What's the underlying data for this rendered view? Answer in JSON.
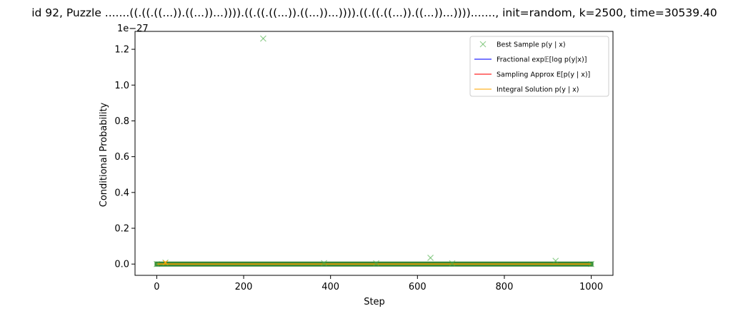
{
  "chart_data": {
    "type": "scatter",
    "title": "id 92, Puzzle .......((.((.((...)).((...))...)))).((.((.((...)).((...))...)))).((.((.((...)).((...))...))))......., init=random, k=2500, time=30539.40",
    "xlabel": "Step",
    "ylabel": "Conditional Probability",
    "y_offset_text": "1e−27",
    "y_scale_exponent": -27,
    "xlim": [
      -50,
      1050
    ],
    "ylim": [
      -0.063,
      1.3
    ],
    "grid": false,
    "legend_position": "top-right",
    "x_ticks": [
      0,
      200,
      400,
      600,
      800,
      1000
    ],
    "x_tick_labels": [
      "0",
      "200",
      "400",
      "600",
      "800",
      "1000"
    ],
    "y_ticks": [
      0.0,
      0.2,
      0.4,
      0.6,
      0.8,
      1.0,
      1.2
    ],
    "y_tick_labels": [
      "0.0",
      "0.2",
      "0.4",
      "0.6",
      "0.8",
      "1.0",
      "1.2"
    ],
    "series": [
      {
        "name": "Best Sample $p(y \\mid x)$",
        "legend_label": "Best Sample p(y | x)",
        "kind": "scatter-x",
        "color": "#4daf4a",
        "points": [
          {
            "x": 245,
            "y": 1.26
          },
          {
            "x": 630,
            "y": 0.035
          },
          {
            "x": 918,
            "y": 0.018
          },
          {
            "x": 20,
            "y": 0.008
          },
          {
            "x": 385,
            "y": 0.005
          },
          {
            "x": 505,
            "y": 0.004
          },
          {
            "x": 680,
            "y": 0.004
          },
          {
            "x": 0,
            "y": 0.0
          },
          {
            "x": 1000,
            "y": 0.0
          }
        ]
      },
      {
        "name": "Fractional $\\exp \\mathbb{E}[\\log p(y|x)]$",
        "legend_label": "Fractional exp𝔼[log p(y|x)]",
        "kind": "line",
        "color": "#0000ff",
        "x": [
          0,
          1000
        ],
        "y": [
          0.0,
          0.0
        ]
      },
      {
        "name": "Sampling Approx $E[p(y \\mid x)]$",
        "legend_label": "Sampling Approx E[p(y | x)]",
        "kind": "line",
        "color": "#ff0000",
        "x": [
          0,
          1000
        ],
        "y": [
          0.0,
          0.0
        ]
      },
      {
        "name": "Integral Solution $p(y \\mid x)$",
        "legend_label": "Integral Solution p(y | x)",
        "kind": "line",
        "color": "#ffa500",
        "x": [
          0,
          1000
        ],
        "y": [
          0.0,
          0.0
        ]
      }
    ]
  }
}
